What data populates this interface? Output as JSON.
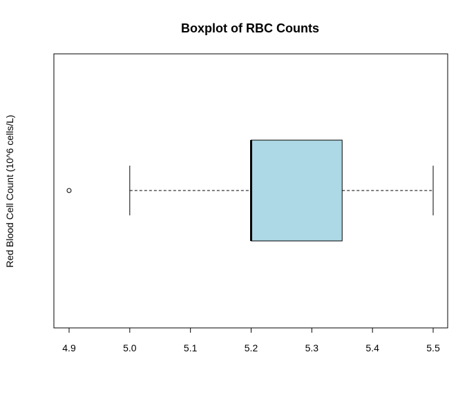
{
  "chart_data": {
    "type": "boxplot",
    "title": "Boxplot of RBC Counts",
    "xlabel": "",
    "ylabel": "Red Blood Cell Count (10^6 cells/L)",
    "orientation": "horizontal",
    "xlim": [
      4.9,
      5.5
    ],
    "ticks": [
      4.9,
      5.0,
      5.1,
      5.2,
      5.3,
      5.4,
      5.5
    ],
    "tick_labels": [
      "4.9",
      "5.0",
      "5.1",
      "5.2",
      "5.3",
      "5.4",
      "5.5"
    ],
    "grid": false,
    "legend": "none",
    "box": {
      "whisker_low": 5.0,
      "q1": 5.2,
      "median": 5.2,
      "q3": 5.35,
      "whisker_high": 5.5,
      "outliers": [
        4.9
      ]
    },
    "colors": {
      "box_fill": "#add8e6",
      "stroke": "#000000"
    }
  }
}
